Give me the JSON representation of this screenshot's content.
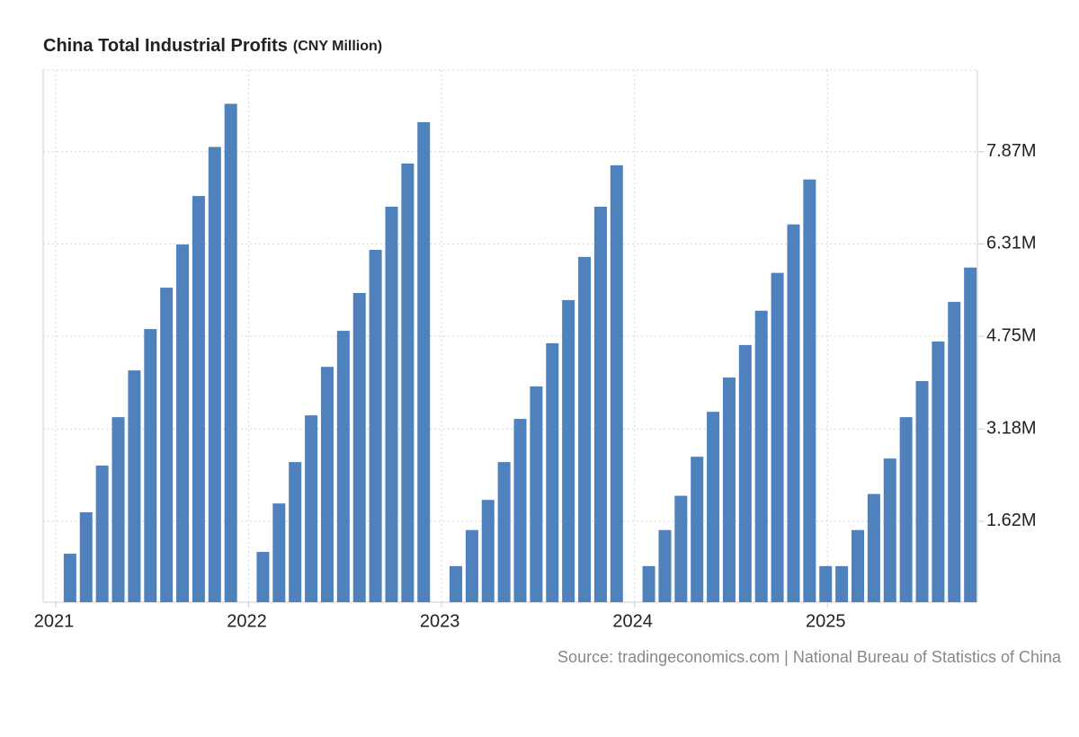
{
  "chart_data": {
    "type": "bar",
    "title": "China Total Industrial Profits",
    "subtitle": "(CNY Million)",
    "source": "Source: tradingeconomics.com | National Bureau of Statistics of China",
    "categories": [
      null,
      null,
      null,
      null,
      null,
      null,
      null,
      null,
      null,
      null,
      null,
      null,
      null,
      null,
      null,
      null,
      null,
      null,
      null,
      null,
      null,
      null,
      null,
      null,
      null,
      null,
      null,
      null,
      null,
      null,
      null,
      null,
      null,
      null,
      null,
      null,
      null,
      null,
      null,
      null,
      null,
      null,
      null,
      null,
      null,
      null,
      null,
      null,
      null,
      null,
      null,
      null,
      null,
      null,
      null,
      null,
      null,
      null
    ],
    "values": [
      null,
      1070000,
      1770000,
      2560000,
      3380000,
      4170000,
      4870000,
      5570000,
      6300000,
      7120000,
      7950000,
      8680000,
      null,
      1100000,
      1920000,
      2620000,
      3410000,
      4230000,
      4840000,
      5480000,
      6210000,
      6940000,
      7670000,
      8370000,
      null,
      860000,
      1470000,
      1980000,
      2620000,
      3350000,
      3900000,
      4630000,
      5360000,
      6090000,
      6940000,
      7640000,
      null,
      860000,
      1470000,
      2050000,
      2710000,
      3470000,
      4050000,
      4600000,
      5180000,
      5820000,
      6640000,
      7400000,
      860000,
      860000,
      1470000,
      2080000,
      2680000,
      3380000,
      3990000,
      4660000,
      5330000,
      5910000
    ],
    "color": "#4f81bd",
    "ylim": [
      250000,
      9250000
    ],
    "yticks": [
      {
        "value": 1620000,
        "label": "1.62M"
      },
      {
        "value": 3180000,
        "label": "3.18M"
      },
      {
        "value": 4750000,
        "label": "4.75M"
      },
      {
        "value": 6310000,
        "label": "6.31M"
      },
      {
        "value": 7870000,
        "label": "7.87M"
      }
    ],
    "xticks": [
      {
        "value": 0,
        "label": "2021"
      },
      {
        "value": 12,
        "label": "2022"
      },
      {
        "value": 24,
        "label": "2023"
      },
      {
        "value": 36,
        "label": "2024"
      },
      {
        "value": 48,
        "label": "2025"
      }
    ],
    "grid": true
  }
}
